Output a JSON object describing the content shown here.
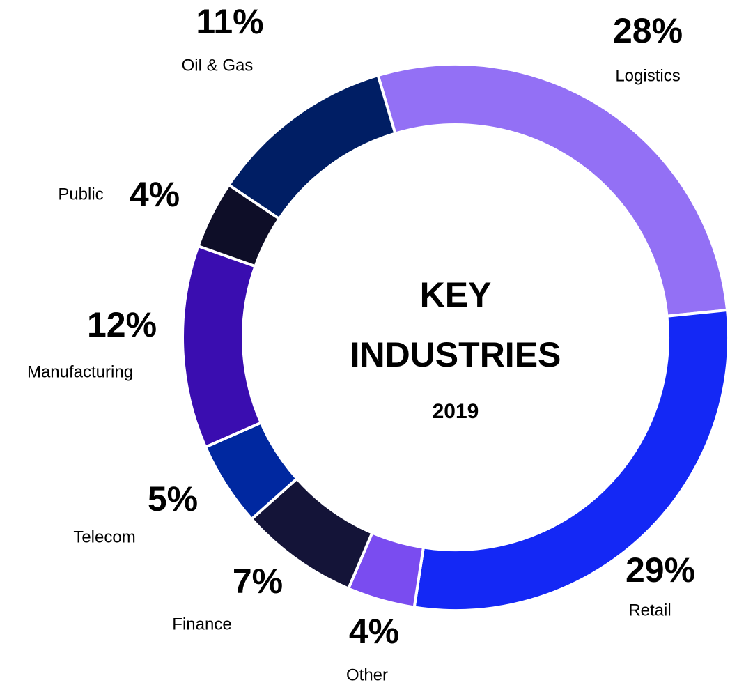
{
  "chart_data": {
    "type": "donut",
    "title": "KEY INDUSTRIES",
    "subtitle": "2019",
    "categories": [
      "Logistics",
      "Retail",
      "Other",
      "Finance",
      "Telecom",
      "Manufacturing",
      "Public",
      "Oil & Gas"
    ],
    "values": [
      28,
      29,
      4,
      7,
      5,
      12,
      4,
      11
    ],
    "value_labels": [
      "28%",
      "29%",
      "4%",
      "7%",
      "5%",
      "12%",
      "4%",
      "11%"
    ],
    "colors": [
      "#9370f5",
      "#1428f5",
      "#7a4cf0",
      "#141438",
      "#0028a0",
      "#3a0db0",
      "#0e0e28",
      "#001e64"
    ]
  }
}
